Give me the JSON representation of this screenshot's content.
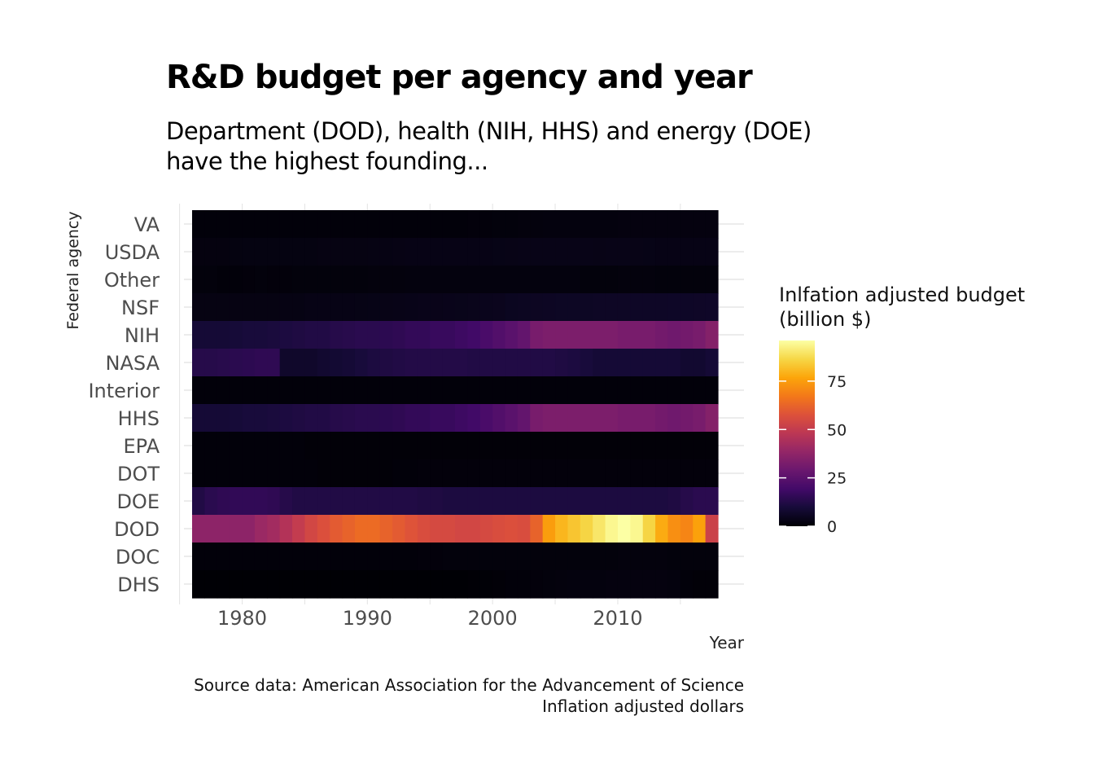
{
  "chart_data": {
    "type": "heatmap",
    "title": "R&D budget per agency and year",
    "subtitle": [
      "Department (DOD), health (NIH, HHS) and energy (DOE)",
      "have the highest founding..."
    ],
    "xlabel": "Year",
    "ylabel": "Federal agency",
    "caption": [
      "Source data: American Association for the Advancement of Science",
      "Inflation adjusted dollars"
    ],
    "legend_title": [
      "Inlfation adjusted budget",
      "(billion $)"
    ],
    "legend_ticks": [
      0,
      25,
      50,
      75
    ],
    "color_range": [
      0,
      96
    ],
    "colormap": "inferno",
    "xlim": [
      1976,
      2017
    ],
    "x_ticks": [
      1980,
      1990,
      2000,
      2010
    ],
    "agencies": [
      "VA",
      "USDA",
      "Other",
      "NSF",
      "NIH",
      "NASA",
      "Interior",
      "HHS",
      "EPA",
      "DOT",
      "DOE",
      "DOD",
      "DOC",
      "DHS"
    ],
    "years": [
      1976,
      1977,
      1978,
      1979,
      1980,
      1981,
      1982,
      1983,
      1984,
      1985,
      1986,
      1987,
      1988,
      1989,
      1990,
      1991,
      1992,
      1993,
      1994,
      1995,
      1996,
      1997,
      1998,
      1999,
      2000,
      2001,
      2002,
      2003,
      2004,
      2005,
      2006,
      2007,
      2008,
      2009,
      2010,
      2011,
      2012,
      2013,
      2014,
      2015,
      2016,
      2017
    ],
    "series": [
      {
        "name": "VA",
        "values": [
          1.0,
          1.0,
          1.0,
          1.0,
          1.0,
          1.0,
          1.0,
          1.0,
          1.0,
          1.0,
          1.0,
          1.0,
          1.0,
          1.0,
          1.0,
          1.0,
          1.0,
          1.0,
          1.0,
          1.0,
          1.0,
          1.0,
          1.2,
          1.3,
          1.4,
          1.5,
          1.6,
          1.7,
          1.8,
          1.8,
          1.8,
          1.8,
          1.9,
          1.9,
          2.0,
          2.0,
          2.0,
          2.0,
          2.0,
          2.0,
          2.0,
          2.0
        ]
      },
      {
        "name": "USDA",
        "values": [
          2.0,
          2.0,
          2.0,
          2.2,
          2.3,
          2.3,
          2.3,
          2.4,
          2.4,
          2.4,
          2.5,
          2.5,
          2.5,
          2.6,
          2.7,
          2.8,
          2.9,
          3.0,
          3.0,
          3.0,
          3.0,
          3.0,
          3.0,
          3.0,
          3.2,
          3.3,
          3.5,
          3.5,
          3.5,
          3.5,
          3.5,
          3.4,
          3.3,
          3.4,
          3.5,
          3.3,
          3.2,
          3.0,
          3.0,
          3.0,
          3.0,
          3.0
        ]
      },
      {
        "name": "Other",
        "values": [
          1.5,
          1.5,
          1.0,
          1.0,
          1.3,
          1.5,
          1.3,
          1.3,
          1.4,
          1.5,
          1.5,
          1.5,
          1.5,
          1.5,
          1.6,
          1.6,
          1.7,
          1.8,
          1.8,
          1.8,
          1.8,
          1.8,
          1.8,
          1.8,
          1.8,
          1.8,
          1.8,
          1.8,
          1.8,
          1.8,
          1.8,
          1.5,
          1.4,
          1.5,
          1.6,
          1.6,
          1.6,
          1.5,
          1.5,
          1.5,
          1.5,
          1.5
        ]
      },
      {
        "name": "NSF",
        "values": [
          2.5,
          2.5,
          2.5,
          2.6,
          2.6,
          2.6,
          2.6,
          2.7,
          2.8,
          3.0,
          3.0,
          3.0,
          3.0,
          3.1,
          3.2,
          3.3,
          3.5,
          3.7,
          3.8,
          3.8,
          3.9,
          4.0,
          4.2,
          4.4,
          4.6,
          5.0,
          5.2,
          5.5,
          5.6,
          5.8,
          5.8,
          5.8,
          5.9,
          6.0,
          6.0,
          6.1,
          6.2,
          6.2,
          6.3,
          6.3,
          6.4,
          6.5
        ]
      },
      {
        "name": "NIH",
        "values": [
          9,
          9,
          9,
          9.5,
          10,
          10,
          10.5,
          11,
          11.5,
          12,
          12,
          13,
          13.5,
          14,
          14,
          14.5,
          15,
          16,
          16,
          17,
          17,
          18,
          19,
          21,
          23,
          25,
          27,
          32,
          33,
          33,
          33,
          33,
          33,
          33,
          32,
          32,
          32,
          31,
          30,
          31,
          32,
          35
        ]
      },
      {
        "name": "NASA",
        "values": [
          13,
          13,
          13.5,
          14,
          14.5,
          15,
          15,
          7,
          7,
          7,
          8,
          8.5,
          9,
          10,
          11,
          11.5,
          12,
          12.5,
          12.5,
          12.5,
          12.5,
          12.5,
          12,
          12,
          12,
          12,
          12,
          12,
          12,
          11.5,
          11,
          10,
          9,
          9,
          9,
          9,
          9,
          9,
          9,
          8,
          8,
          9
        ]
      },
      {
        "name": "Interior",
        "values": [
          1.0,
          1.0,
          1.0,
          1.0,
          1.0,
          1.0,
          1.0,
          1.0,
          1.0,
          1.0,
          1.0,
          1.0,
          1.0,
          1.0,
          1.0,
          1.0,
          1.0,
          1.0,
          1.0,
          1.0,
          1.0,
          1.0,
          1.0,
          1.0,
          1.0,
          1.0,
          1.0,
          1.0,
          1.0,
          1.0,
          1.0,
          1.0,
          1.0,
          1.0,
          1.0,
          1.0,
          1.0,
          1.0,
          1.0,
          1.0,
          1.0,
          1.0
        ]
      },
      {
        "name": "HHS",
        "values": [
          9,
          9,
          9,
          9.5,
          10,
          10,
          10.5,
          11,
          11.5,
          12,
          12,
          13,
          13.5,
          14,
          14,
          14.5,
          15,
          16,
          16,
          17,
          17,
          18,
          19,
          21,
          23,
          25,
          27,
          32,
          33,
          33,
          33,
          33,
          33,
          33,
          32,
          32,
          32,
          31,
          30,
          31,
          32,
          35
        ]
      },
      {
        "name": "EPA",
        "values": [
          1.0,
          1.0,
          1.0,
          1.0,
          1.0,
          1.0,
          1.0,
          1.0,
          1.0,
          0.8,
          0.8,
          0.8,
          0.8,
          0.8,
          0.8,
          0.8,
          0.8,
          0.8,
          0.8,
          0.8,
          0.8,
          0.8,
          0.8,
          0.8,
          0.8,
          0.8,
          0.8,
          0.8,
          0.8,
          0.8,
          0.8,
          0.8,
          0.8,
          0.8,
          0.8,
          0.8,
          0.8,
          0.8,
          0.8,
          0.8,
          0.8,
          0.8
        ]
      },
      {
        "name": "DOT",
        "values": [
          1.0,
          1.0,
          1.0,
          1.0,
          1.0,
          1.0,
          1.0,
          1.0,
          1.0,
          1.0,
          0.8,
          0.8,
          0.8,
          0.8,
          0.8,
          0.8,
          1.0,
          1.0,
          1.2,
          1.2,
          1.2,
          1.2,
          1.2,
          1.3,
          1.3,
          1.3,
          1.3,
          1.3,
          1.3,
          1.3,
          1.3,
          1.3,
          1.3,
          1.3,
          1.3,
          1.3,
          1.3,
          1.3,
          1.3,
          1.3,
          1.3,
          1.3
        ]
      },
      {
        "name": "DOE",
        "values": [
          12,
          14,
          15,
          15.5,
          15.5,
          15.5,
          15,
          13,
          12,
          12,
          12,
          12,
          12,
          12,
          12,
          12,
          12,
          12,
          11.5,
          11.5,
          11,
          11,
          11,
          11,
          11,
          11,
          11,
          11,
          11,
          11,
          11,
          11,
          11,
          11,
          11,
          11,
          11,
          11,
          11.5,
          13,
          14,
          14
        ]
      },
      {
        "name": "DOD",
        "values": [
          37,
          37,
          37,
          37,
          37,
          40,
          42,
          46,
          50,
          54,
          57,
          60,
          62,
          64,
          64,
          62,
          60,
          58,
          56,
          55,
          55,
          54,
          54,
          55,
          56,
          57,
          56,
          62,
          75,
          80,
          83,
          86,
          90,
          94,
          96,
          94,
          86,
          78,
          72,
          70,
          76,
          52
        ]
      },
      {
        "name": "DOC",
        "values": [
          1.0,
          1.0,
          1.0,
          1.0,
          1.0,
          1.0,
          1.0,
          1.0,
          1.0,
          1.0,
          1.0,
          1.0,
          1.0,
          1.0,
          1.0,
          1.0,
          1.0,
          1.0,
          1.2,
          1.2,
          1.4,
          1.5,
          1.5,
          1.5,
          1.5,
          1.5,
          1.5,
          1.5,
          1.5,
          1.5,
          1.5,
          1.5,
          1.5,
          1.5,
          1.6,
          1.6,
          1.6,
          1.6,
          1.5,
          1.5,
          1.5,
          1.5
        ]
      },
      {
        "name": "DHS",
        "values": [
          0.2,
          0.2,
          0.2,
          0.2,
          0.2,
          0.2,
          0.2,
          0.2,
          0.2,
          0.2,
          0.2,
          0.2,
          0.2,
          0.2,
          0.2,
          0.2,
          0.2,
          0.2,
          0.2,
          0.2,
          0.2,
          0.2,
          0.3,
          0.5,
          0.8,
          1.0,
          1.0,
          1.2,
          1.5,
          1.7,
          1.8,
          1.8,
          1.9,
          2.0,
          2.0,
          2.0,
          2.0,
          2.0,
          1.8,
          1.0,
          0.8,
          0.8
        ]
      }
    ]
  }
}
